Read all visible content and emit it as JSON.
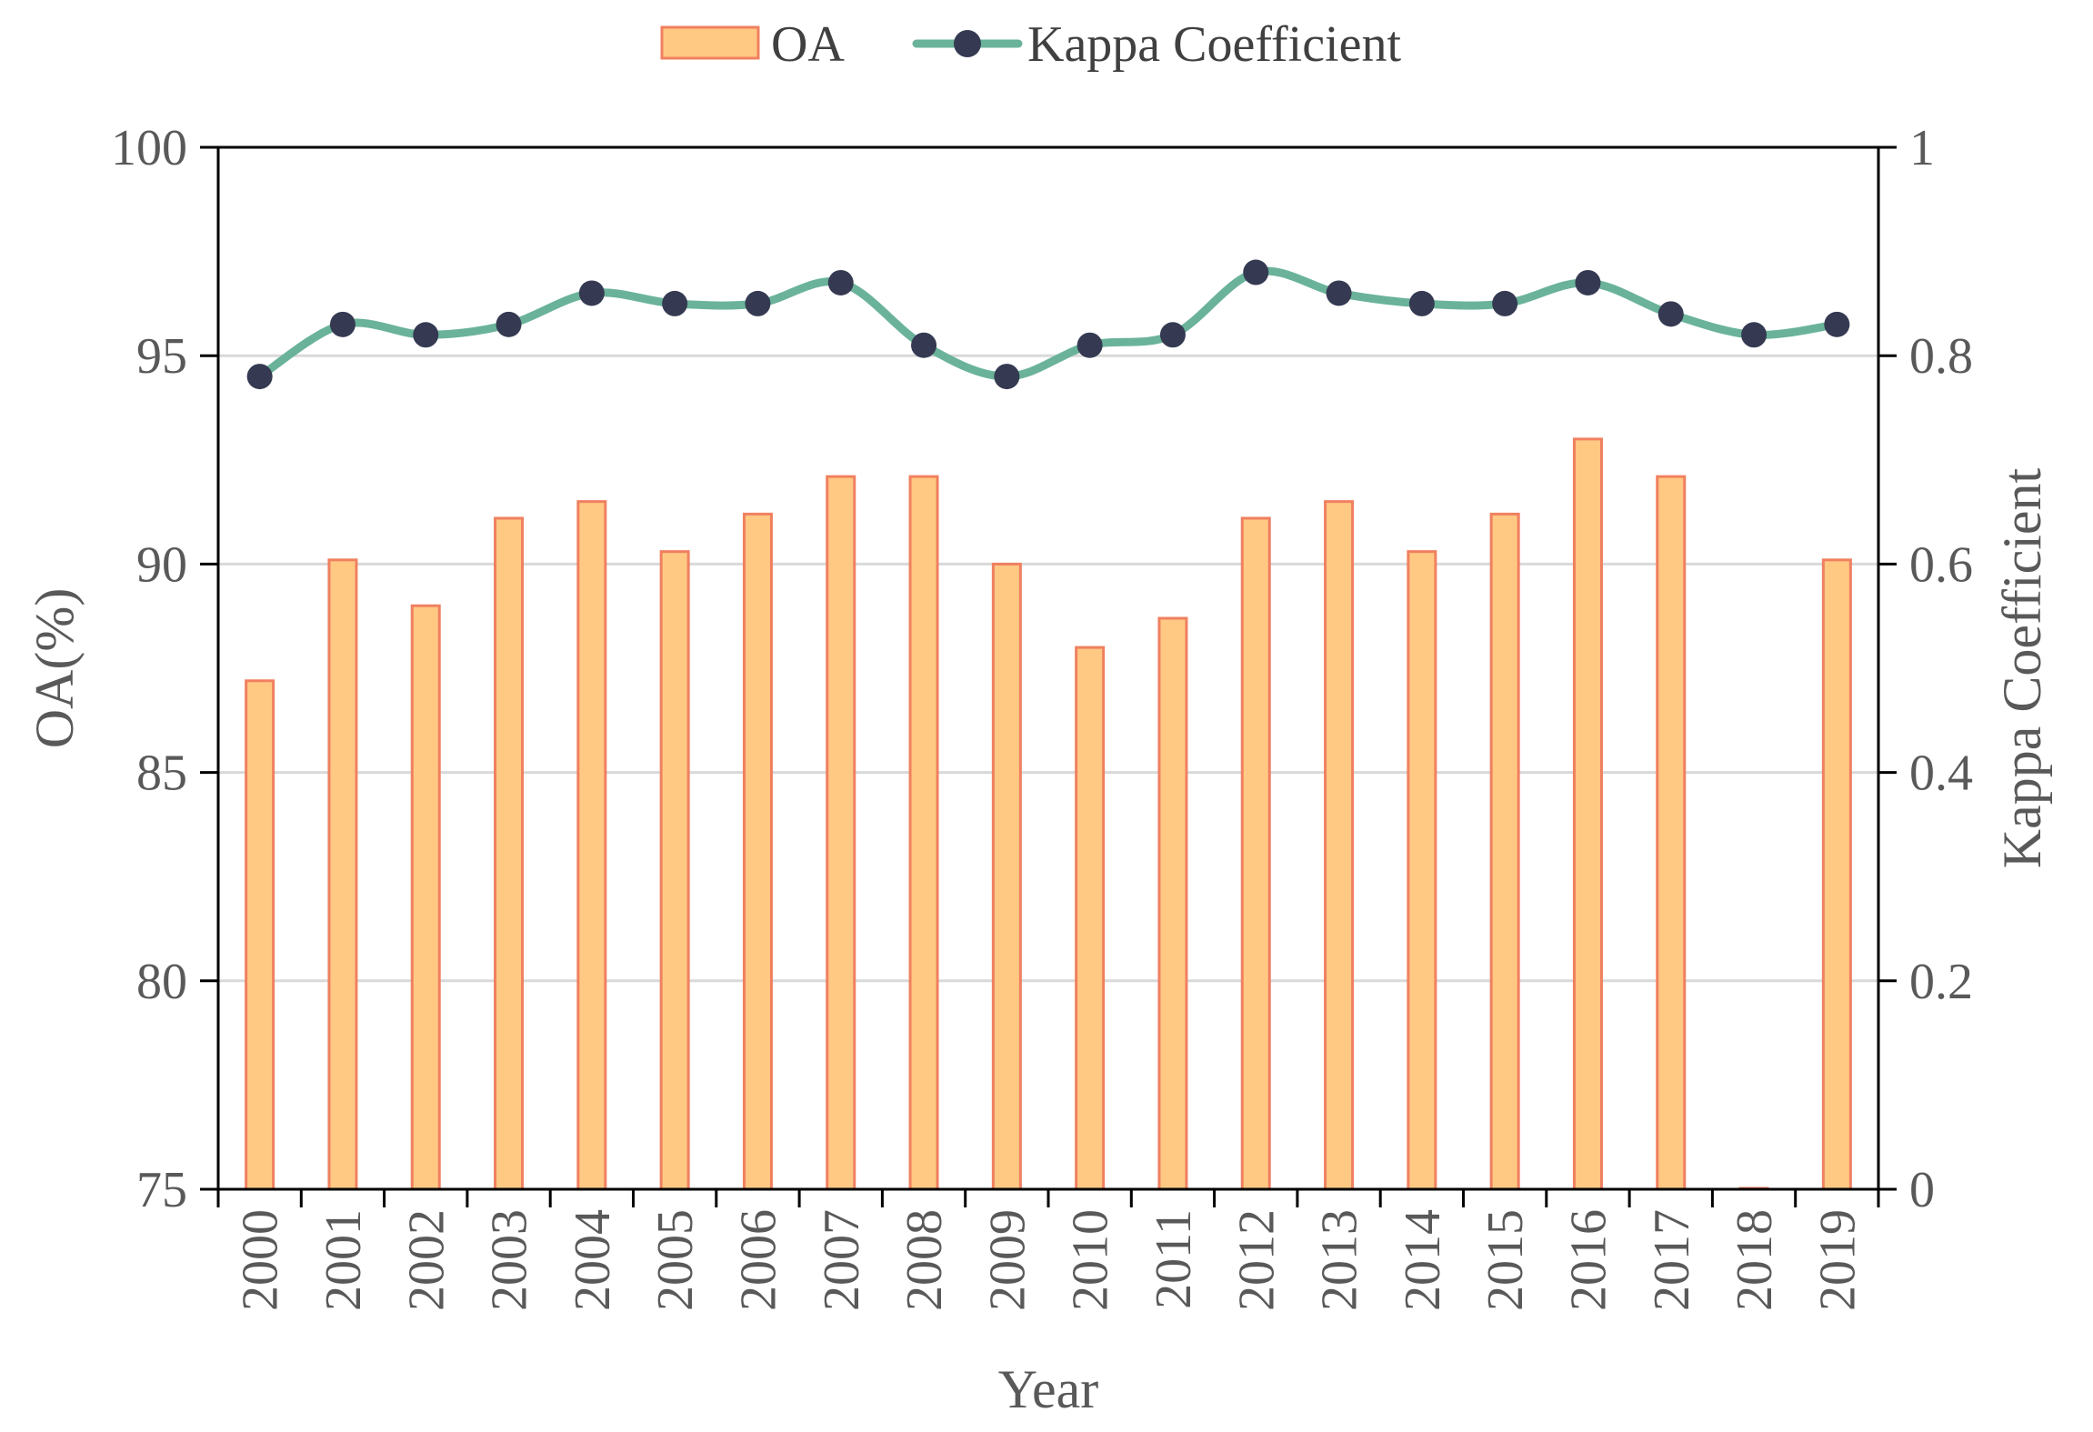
{
  "chart_data": {
    "type": "bar+line",
    "categories": [
      "2000",
      "2001",
      "2002",
      "2003",
      "2004",
      "2005",
      "2006",
      "2007",
      "2008",
      "2009",
      "2010",
      "2011",
      "2012",
      "2013",
      "2014",
      "2015",
      "2016",
      "2017",
      "2018",
      "2019"
    ],
    "series": [
      {
        "name": "OA",
        "type": "bar",
        "axis": "left",
        "values": [
          87.2,
          90.1,
          89.0,
          91.1,
          91.5,
          90.3,
          91.2,
          92.1,
          92.1,
          90.0,
          88.0,
          88.7,
          91.1,
          91.5,
          90.3,
          91.2,
          93.0,
          92.1,
          75.0,
          90.1
        ],
        "fill": "#FFC983",
        "stroke": "#F08060"
      },
      {
        "name": "Kappa Coefficient",
        "type": "line",
        "axis": "right",
        "values": [
          0.78,
          0.83,
          0.82,
          0.83,
          0.86,
          0.85,
          0.85,
          0.87,
          0.81,
          0.78,
          0.81,
          0.82,
          0.88,
          0.86,
          0.85,
          0.85,
          0.87,
          0.84,
          0.82,
          0.83
        ],
        "line_color": "#6AB39A",
        "marker_color": "#353A52",
        "smooth": true
      }
    ],
    "xlabel": "Year",
    "ylabel_left": "OA(%)",
    "ylabel_right": "Kappa Coefficient",
    "ylim_left": [
      75,
      100
    ],
    "ylim_right": [
      0,
      1
    ],
    "yticks_left": [
      "75",
      "80",
      "85",
      "90",
      "95",
      "100"
    ],
    "yticks_right": [
      "0",
      "0.2",
      "0.4",
      "0.6",
      "0.8",
      "1"
    ],
    "grid": true,
    "grid_color": "#D9D9D9",
    "legend_position": "top-center",
    "xtick_rotation": "vertical"
  }
}
